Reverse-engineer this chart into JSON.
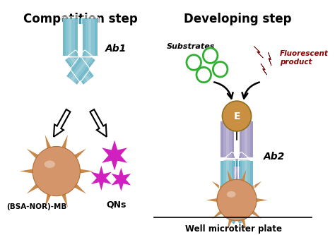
{
  "title_left": "Competition step",
  "title_right": "Developing step",
  "label_ab1": "Ab1",
  "label_ab2": "Ab2",
  "label_mb": "(BSA-NOR)-MB",
  "label_qns": "QNs",
  "label_substrates": "Substrates",
  "label_fluorescent": "Fluorescent\nproduct",
  "label_well": "Well microtiter plate",
  "label_enzyme": "E",
  "color_ab1": "#3a9db5",
  "color_ab2_top": "#7a6eaa",
  "color_ab2_bot": "#3a9db5",
  "color_mb": "#d4956a",
  "color_mb_spike": "#c8894a",
  "color_qns": "#d020c0",
  "color_enzyme": "#c89040",
  "color_substrate": "#30b030",
  "color_fluorescent": "#8b1a1a",
  "bg_color": "#ffffff",
  "title_fontsize": 12,
  "label_fontsize": 8.5
}
